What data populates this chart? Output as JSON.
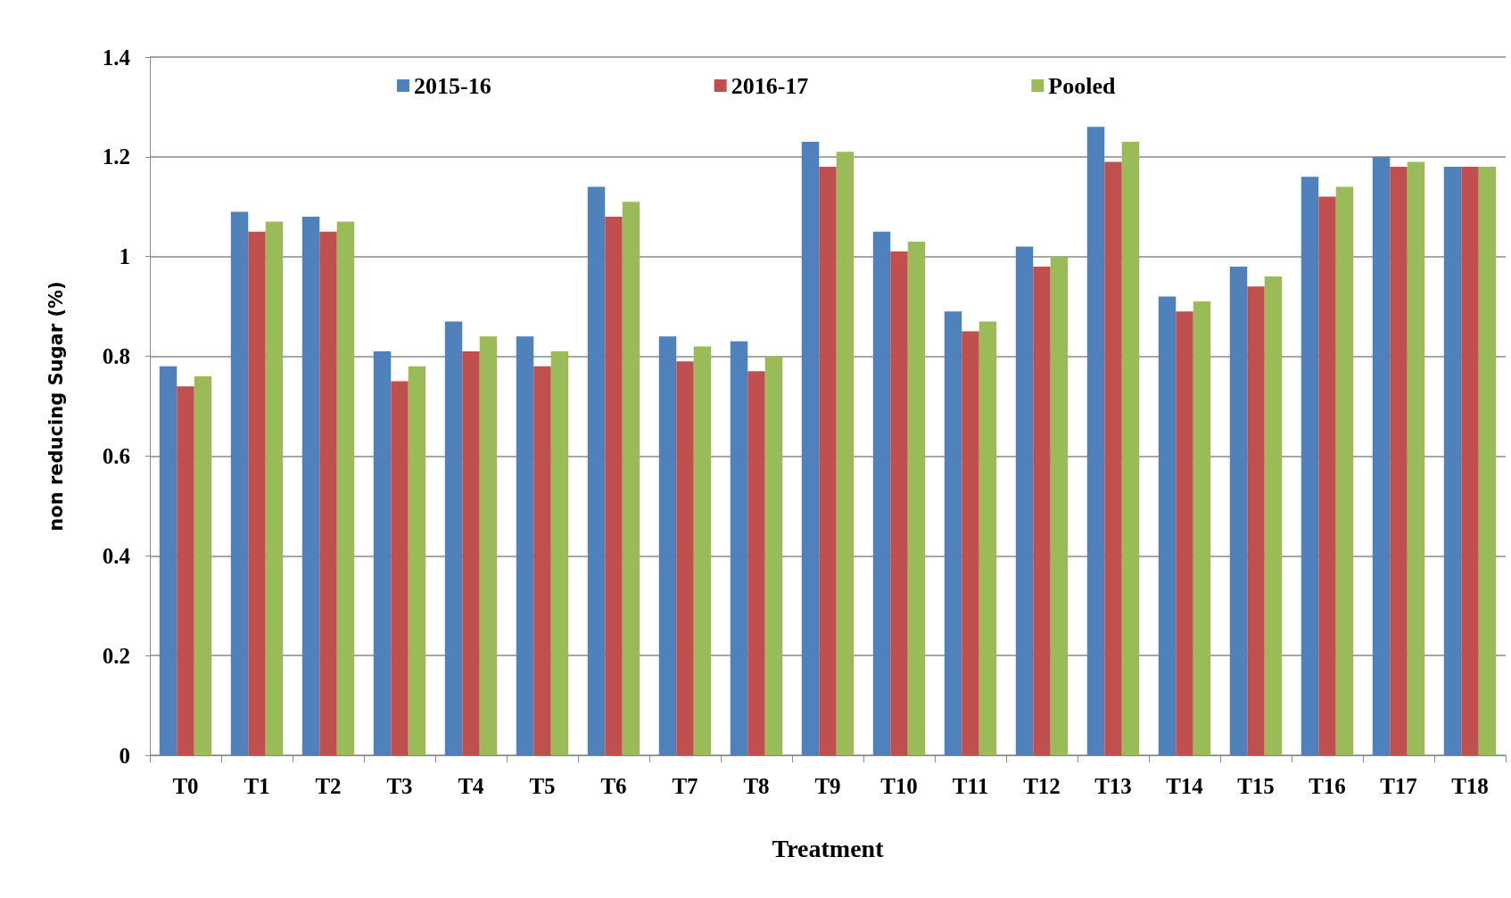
{
  "chart_data": {
    "type": "bar",
    "xlabel": "Treatment",
    "ylabel": "non reducing Sugar (%)",
    "categories": [
      "T0",
      "T1",
      "T2",
      "T3",
      "T4",
      "T5",
      "T6",
      "T7",
      "T8",
      "T9",
      "T10",
      "T11",
      "T12",
      "T13",
      "T14",
      "T15",
      "T16",
      "T17",
      "T18"
    ],
    "series": [
      {
        "name": "2015-16",
        "color": "#4f81bd",
        "values": [
          0.78,
          1.09,
          1.08,
          0.81,
          0.87,
          0.84,
          1.14,
          0.84,
          0.83,
          1.23,
          1.05,
          0.89,
          1.02,
          1.26,
          0.92,
          0.98,
          1.16,
          1.2,
          1.18
        ]
      },
      {
        "name": "2016-17",
        "color": "#c0504d",
        "values": [
          0.74,
          1.05,
          1.05,
          0.75,
          0.81,
          0.78,
          1.08,
          0.79,
          0.77,
          1.18,
          1.01,
          0.85,
          0.98,
          1.19,
          0.89,
          0.94,
          1.12,
          1.18,
          1.18
        ]
      },
      {
        "name": "Pooled",
        "color": "#9bbb59",
        "values": [
          0.76,
          1.07,
          1.07,
          0.78,
          0.84,
          0.81,
          1.11,
          0.82,
          0.8,
          1.21,
          1.03,
          0.87,
          1,
          1.23,
          0.91,
          0.96,
          1.14,
          1.19,
          1.18
        ]
      }
    ],
    "ylim": [
      0,
      1.4
    ],
    "yticks": [
      0,
      0.2,
      0.4,
      0.6,
      0.8,
      1,
      1.2,
      1.4
    ],
    "grid": "y",
    "legend": "top"
  }
}
